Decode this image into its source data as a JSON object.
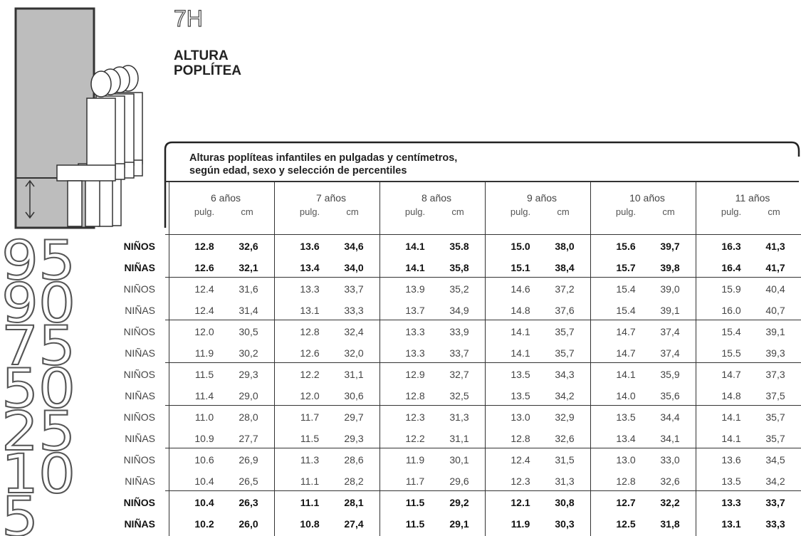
{
  "header": {
    "code": "7H",
    "title": [
      "ALTURA",
      "POPLÍTEA"
    ]
  },
  "table": {
    "caption": [
      "Alturas poplíteas infantiles en pulgadas y centímetros,",
      "según edad, sexo y selección de percentiles"
    ],
    "ages": [
      "6 años",
      "7 años",
      "8 años",
      "9 años",
      "10 años",
      "11 años"
    ],
    "units": [
      "pulg.",
      "cm"
    ],
    "groups": [
      {
        "percentile": "95",
        "bold": true,
        "rows": [
          {
            "sex": "NIÑOS",
            "values": [
              "12.8",
              "32,6",
              "13.6",
              "34,6",
              "14.1",
              "35.8",
              "15.0",
              "38,0",
              "15.6",
              "39,7",
              "16.3",
              "41,3"
            ]
          },
          {
            "sex": "NIÑAS",
            "values": [
              "12.6",
              "32,1",
              "13.4",
              "34,0",
              "14.1",
              "35,8",
              "15.1",
              "38,4",
              "15.7",
              "39,8",
              "16.4",
              "41,7"
            ]
          }
        ]
      },
      {
        "percentile": "90",
        "bold": false,
        "rows": [
          {
            "sex": "NIÑOS",
            "values": [
              "12.4",
              "31,6",
              "13.3",
              "33,7",
              "13.9",
              "35,2",
              "14.6",
              "37,2",
              "15.4",
              "39,0",
              "15.9",
              "40,4"
            ]
          },
          {
            "sex": "NIÑAS",
            "values": [
              "12.4",
              "31,4",
              "13.1",
              "33,3",
              "13.7",
              "34,9",
              "14.8",
              "37,6",
              "15.4",
              "39,1",
              "16.0",
              "40,7"
            ]
          }
        ]
      },
      {
        "percentile": "75",
        "bold": false,
        "rows": [
          {
            "sex": "NIÑOS",
            "values": [
              "12.0",
              "30,5",
              "12.8",
              "32,4",
              "13.3",
              "33,9",
              "14.1",
              "35,7",
              "14.7",
              "37,4",
              "15.4",
              "39,1"
            ]
          },
          {
            "sex": "NIÑAS",
            "values": [
              "11.9",
              "30,2",
              "12.6",
              "32,0",
              "13.3",
              "33,7",
              "14.1",
              "35,7",
              "14.7",
              "37,4",
              "15.5",
              "39,3"
            ]
          }
        ]
      },
      {
        "percentile": "50",
        "bold": false,
        "rows": [
          {
            "sex": "NIÑOS",
            "values": [
              "11.5",
              "29,3",
              "12.2",
              "31,1",
              "12.9",
              "32,7",
              "13.5",
              "34,3",
              "14.1",
              "35,9",
              "14.7",
              "37,3"
            ]
          },
          {
            "sex": "NIÑAS",
            "values": [
              "11.4",
              "29,0",
              "12.0",
              "30,6",
              "12.8",
              "32,5",
              "13.5",
              "34,2",
              "14.0",
              "35,6",
              "14.8",
              "37,5"
            ]
          }
        ]
      },
      {
        "percentile": "25",
        "bold": false,
        "rows": [
          {
            "sex": "NIÑOS",
            "values": [
              "11.0",
              "28,0",
              "11.7",
              "29,7",
              "12.3",
              "31,3",
              "13.0",
              "32,9",
              "13.5",
              "34,4",
              "14.1",
              "35,7"
            ]
          },
          {
            "sex": "NIÑAS",
            "values": [
              "10.9",
              "27,7",
              "11.5",
              "29,3",
              "12.2",
              "31,1",
              "12.8",
              "32,6",
              "13.4",
              "34,1",
              "14.1",
              "35,7"
            ]
          }
        ]
      },
      {
        "percentile": "10",
        "bold": false,
        "rows": [
          {
            "sex": "NIÑOS",
            "values": [
              "10.6",
              "26,9",
              "11.3",
              "28,6",
              "11.9",
              "30,1",
              "12.4",
              "31,5",
              "13.0",
              "33,0",
              "13.6",
              "34,5"
            ]
          },
          {
            "sex": "NIÑAS",
            "values": [
              "10.4",
              "26,5",
              "11.1",
              "28,2",
              "11.7",
              "29,6",
              "12.3",
              "31,3",
              "12.8",
              "32,6",
              "13.5",
              "34,2"
            ]
          }
        ]
      },
      {
        "percentile": "5",
        "bold": true,
        "rows": [
          {
            "sex": "NIÑOS",
            "values": [
              "10.4",
              "26,3",
              "11.1",
              "28,1",
              "11.5",
              "29,2",
              "12.1",
              "30,8",
              "12.7",
              "32,2",
              "13.3",
              "33,7"
            ]
          },
          {
            "sex": "NIÑAS",
            "values": [
              "10.2",
              "26,0",
              "10.8",
              "27,4",
              "11.5",
              "29,1",
              "11.9",
              "30,3",
              "12.5",
              "31,8",
              "13.1",
              "33,3"
            ]
          }
        ]
      }
    ]
  }
}
